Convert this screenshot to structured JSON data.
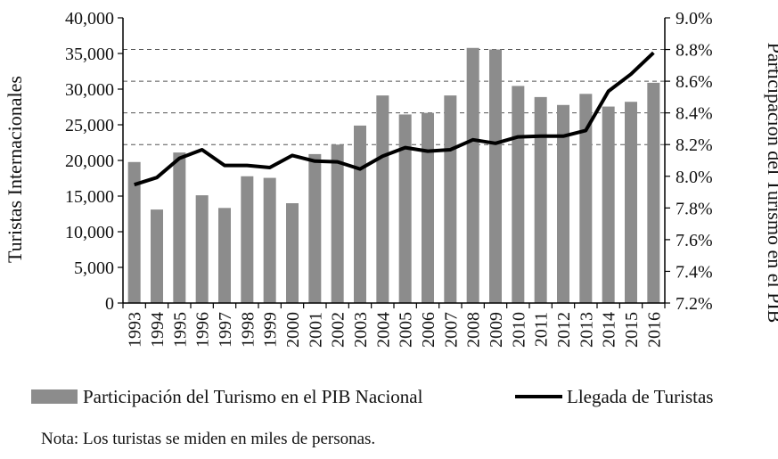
{
  "chart_data": {
    "type": "bar+line",
    "categories": [
      "1993",
      "1994",
      "1995",
      "1996",
      "1997",
      "1998",
      "1999",
      "2000",
      "2001",
      "2002",
      "2003",
      "2004",
      "2005",
      "2006",
      "2007",
      "2008",
      "2009",
      "2010",
      "2011",
      "2012",
      "2013",
      "2014",
      "2015",
      "2016"
    ],
    "series": [
      {
        "name": "Participación del Turismo en el PIB Nacional",
        "kind": "bar",
        "axis": "right",
        "color": "#8c8c8c",
        "values": [
          8.09,
          7.79,
          8.15,
          7.88,
          7.8,
          8.0,
          7.99,
          7.83,
          8.14,
          8.2,
          8.32,
          8.51,
          8.39,
          8.4,
          8.51,
          8.81,
          8.8,
          8.57,
          8.5,
          8.45,
          8.52,
          8.44,
          8.47,
          8.59
        ]
      },
      {
        "name": "Llegada de Turistas",
        "kind": "line",
        "axis": "left",
        "color": "#000000",
        "values": [
          16600,
          17600,
          20300,
          21500,
          19300,
          19300,
          19000,
          20700,
          19900,
          19800,
          18800,
          20600,
          21800,
          21300,
          21500,
          22900,
          22400,
          23300,
          23400,
          23400,
          24200,
          29700,
          32100,
          35100
        ]
      }
    ],
    "ylabel_left": "Turistas Internacionales",
    "ylabel_right": "Participación del Turismo en el PIB",
    "ylim_left": [
      0,
      40000
    ],
    "yticks_left": [
      "0",
      "5,000",
      "10,000",
      "15,000",
      "20,000",
      "25,000",
      "30,000",
      "35,000",
      "40,000"
    ],
    "ylim_right": [
      7.2,
      9.0
    ],
    "yticks_right": [
      "7.2%",
      "7.4%",
      "7.6%",
      "7.8%",
      "8.0%",
      "8.2%",
      "8.4%",
      "8.6%",
      "8.8%",
      "9.0%"
    ],
    "gridlines_right": [
      8.2,
      8.4,
      8.6,
      8.8
    ],
    "legend_position": "bottom",
    "note": "Nota: Los turistas se miden en miles de personas."
  }
}
